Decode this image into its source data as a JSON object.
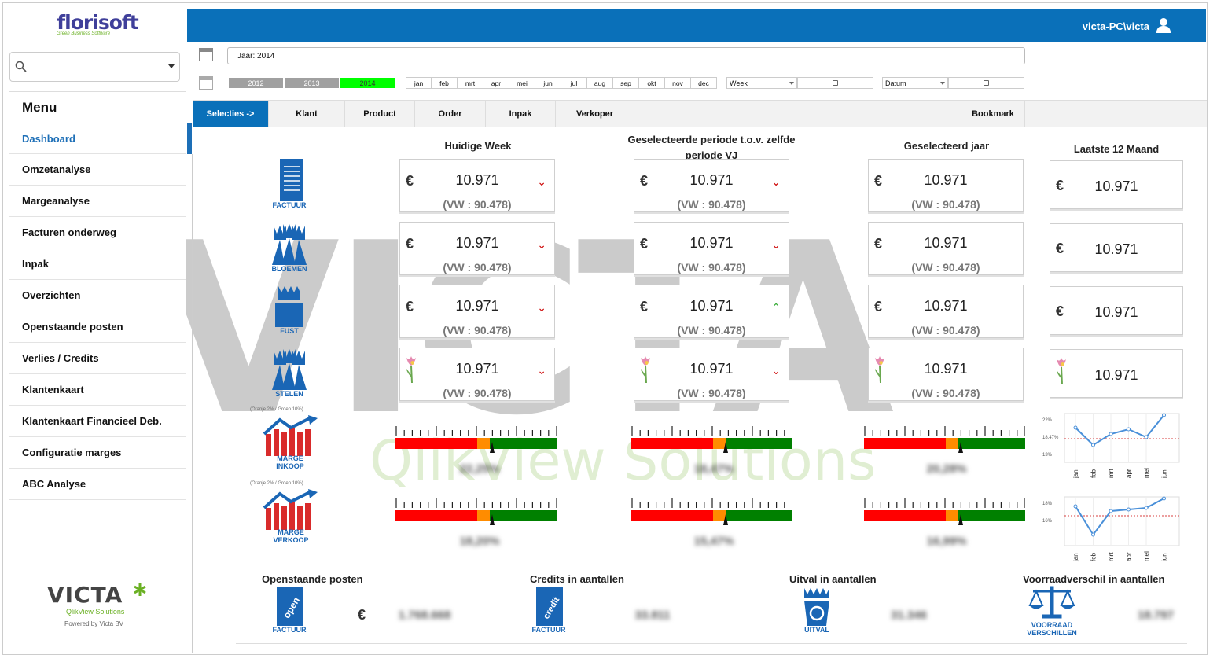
{
  "brand": {
    "logo_main": "florisoft",
    "logo_sub": "Green Business Software"
  },
  "search": {
    "placeholder": ""
  },
  "menu": {
    "title": "Menu",
    "items": [
      {
        "label": "Dashboard"
      },
      {
        "label": "Omzetanalyse"
      },
      {
        "label": "Margeanalyse"
      },
      {
        "label": "Facturen onderweg"
      },
      {
        "label": "Inpak"
      },
      {
        "label": "Overzichten"
      },
      {
        "label": "Openstaande posten"
      },
      {
        "label": "Verlies / Credits"
      },
      {
        "label": "Klantenkaart"
      },
      {
        "label": "Klantenkaart Financieel Deb."
      },
      {
        "label": "Configuratie marges"
      },
      {
        "label": "ABC Analyse"
      }
    ]
  },
  "victa": {
    "name": "VICTA",
    "tagline": "QlikView Solutions",
    "powered": "Powered by Victa BV"
  },
  "header": {
    "user": "victa-PC\\victa"
  },
  "filters": {
    "year_field": "Jaar: 2014",
    "years": [
      "2012",
      "2013",
      "2014"
    ],
    "selected_year": "2014",
    "months": [
      "jan",
      "feb",
      "mrt",
      "apr",
      "mei",
      "jun",
      "jul",
      "aug",
      "sep",
      "okt",
      "nov",
      "dec"
    ],
    "week_dropdown": "Week",
    "datum_dropdown": "Datum"
  },
  "tabs": {
    "selecties": "Selecties ->",
    "klant": "Klant",
    "product": "Product",
    "order": "Order",
    "inpak": "Inpak",
    "verkoper": "Verkoper",
    "bookmark": "Bookmark"
  },
  "columns": {
    "c1": "Huidige Week",
    "c2": "Geselecteerde periode t.o.v. zelfde periode VJ",
    "c3": "Geselecteerd jaar",
    "c4": "Laatste 12 Maand"
  },
  "row_labels": {
    "factuur": "FACTUUR",
    "bloemen": "BLOEMEN",
    "fust": "FUST",
    "stelen": "STELEN",
    "marge_inkoop": "MARGE INKOOP",
    "marge_verkoop": "MARGE VERKOOP",
    "gauge_note": "(Oranje 2% / Groen 10%)"
  },
  "kpi": {
    "currency": "€",
    "value": "10.971",
    "vw": "(VW : 90.478)"
  },
  "margins": {
    "inkoop": [
      "22,25%",
      "18,47%",
      "20,28%"
    ],
    "verkoop": [
      "18,20%",
      "15,47%",
      "16,99%"
    ]
  },
  "colors": {
    "primary": "#0a70b9",
    "green": "#00ff00",
    "red": "#ff0000",
    "orange": "#ff8c00",
    "dark_green": "#008000"
  },
  "sparkline": {
    "months": [
      "jan",
      "feb",
      "mrt",
      "apr",
      "mei",
      "jun"
    ],
    "inkoop_labels": [
      "22%",
      "18,47%",
      "13%"
    ],
    "verkoop_labels": [
      "18%",
      "16%"
    ]
  },
  "bottom": {
    "openstaande": {
      "title": "Openstaande posten",
      "icon_label": "FACTUUR",
      "currency": "€",
      "value": "1.768.668"
    },
    "credits": {
      "title": "Credits in aantallen",
      "icon_label": "FACTUUR",
      "value": "33.811"
    },
    "uitval": {
      "title": "Uitval in aantallen",
      "icon_label": "UITVAL",
      "value": "31.346"
    },
    "voorraad": {
      "title": "Voorraadverschil in aantallen",
      "icon_label": "VOORRAAD VERSCHILLEN",
      "value": "18.797"
    }
  },
  "watermark": {
    "text": "VICTA",
    "sub": "QlikView Solutions"
  }
}
